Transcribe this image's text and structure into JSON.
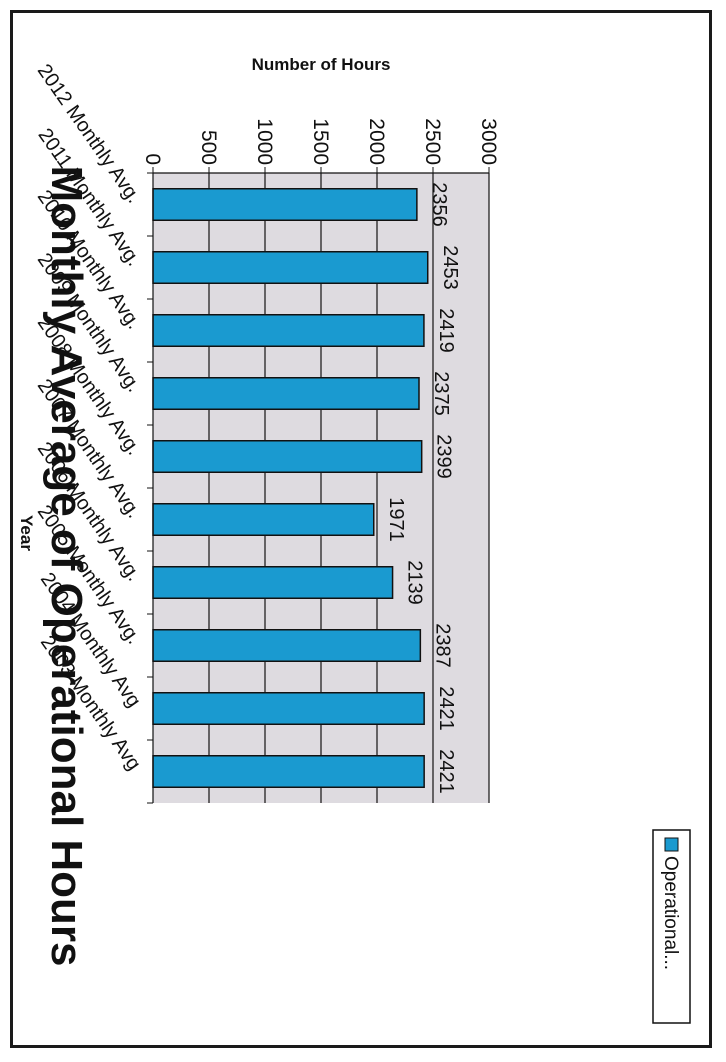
{
  "chart_data": {
    "type": "bar",
    "title": "Monthly Average of Operational Hours",
    "xlabel": "Year",
    "ylabel": "Number of Hours",
    "categories": [
      "2012 Monthly Avg.",
      "2011 Monthly Avg.",
      "2010 Monthly Avg.",
      "2009 Monthly Avg.",
      "2008 Monthly Avg.",
      "2007 Monthly Avg.",
      "2006 Monthly Avg.",
      "2005 Monthly Avg.",
      "2004 Monthly Avg",
      "2003 Monthly Avg"
    ],
    "series": [
      {
        "name": "Operational...",
        "values": [
          2356,
          2453,
          2419,
          2375,
          2399,
          1971,
          2139,
          2387,
          2421,
          2421
        ]
      }
    ],
    "ylim": [
      0,
      3000
    ],
    "yticks": [
      "0",
      "500",
      "1000",
      "1500",
      "2000",
      "2500",
      "3000"
    ],
    "grid": true,
    "legend_position": "right",
    "colors": {
      "bar": "#1a9ad0",
      "bar_edge": "#111111",
      "plot_bg": "#dedbe0",
      "grid": "#222222"
    }
  }
}
